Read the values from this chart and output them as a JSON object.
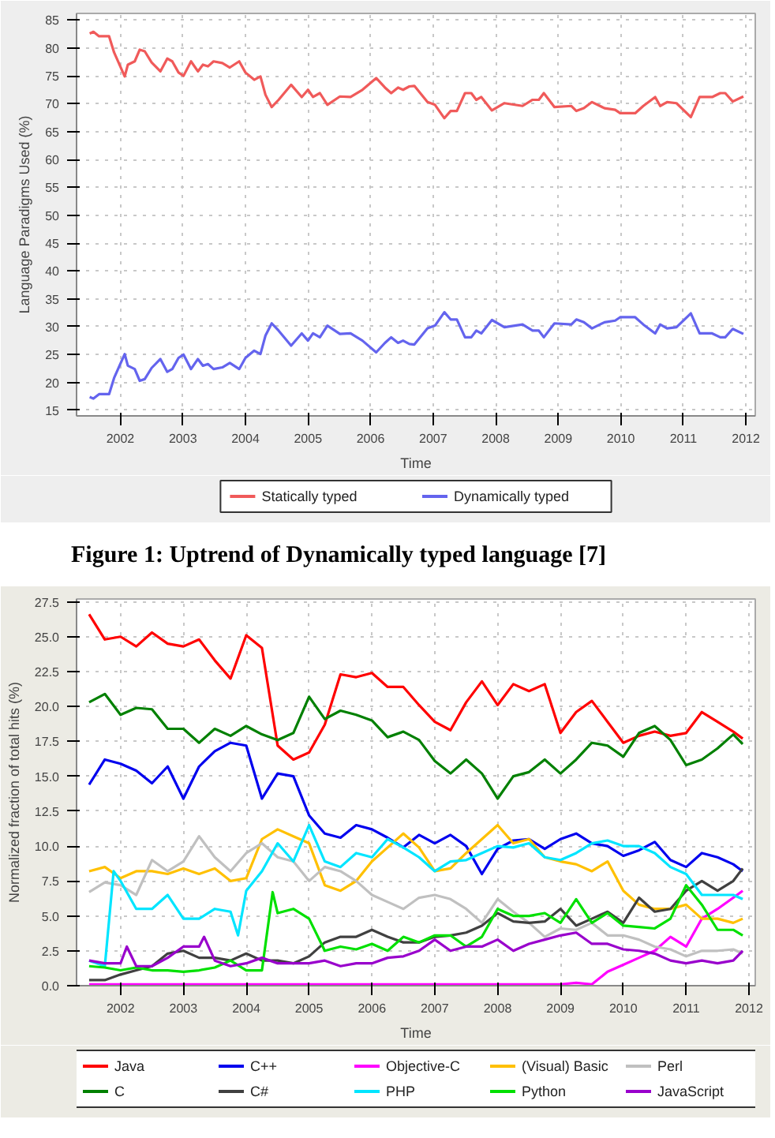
{
  "chart_data": [
    {
      "type": "line",
      "xlabel": "Time",
      "ylabel": "Language Paradigms Used (%)",
      "xlim": [
        2001.3,
        2012.15
      ],
      "ylim": [
        14,
        86.2
      ],
      "xticks": [
        2002,
        2003,
        2004,
        2005,
        2006,
        2007,
        2008,
        2009,
        2010,
        2011,
        2012
      ],
      "yticks": [
        15,
        20,
        25,
        30,
        35,
        40,
        45,
        50,
        55,
        60,
        65,
        70,
        75,
        80,
        85
      ],
      "grid": true,
      "legend": "bottom",
      "line_style": "solid",
      "annotations": [
        "Figure 1: Uptrend of Dynamically typed language [7]"
      ],
      "x": [
        2001.51,
        2001.57,
        2001.66,
        2001.82,
        2001.9,
        2002.07,
        2002.12,
        2002.23,
        2002.31,
        2002.39,
        2002.5,
        2002.64,
        2002.75,
        2002.83,
        2002.93,
        2003.01,
        2003.13,
        2003.24,
        2003.32,
        2003.4,
        2003.49,
        2003.63,
        2003.75,
        2003.9,
        2004.0,
        2004.14,
        2004.24,
        2004.32,
        2004.42,
        2004.53,
        2004.73,
        2004.9,
        2005.0,
        2005.08,
        2005.19,
        2005.31,
        2005.51,
        2005.68,
        2005.87,
        2006.09,
        2006.23,
        2006.33,
        2006.44,
        2006.52,
        2006.62,
        2006.7,
        2006.91,
        2007.03,
        2007.18,
        2007.28,
        2007.38,
        2007.51,
        2007.61,
        2007.69,
        2007.77,
        2007.94,
        2008.14,
        2008.43,
        2008.59,
        2008.69,
        2008.77,
        2008.94,
        2009.21,
        2009.29,
        2009.41,
        2009.54,
        2009.74,
        2009.91,
        2009.99,
        2010.23,
        2010.36,
        2010.55,
        2010.63,
        2010.74,
        2010.89,
        2011.12,
        2011.26,
        2011.46,
        2011.59,
        2011.67,
        2011.79,
        2011.96
      ],
      "series": [
        {
          "name": "Statically typed",
          "color": "#f05a5a",
          "values": [
            82.6,
            82.9,
            82.1,
            82.1,
            79.2,
            74.9,
            77.0,
            77.6,
            79.7,
            79.4,
            77.4,
            75.8,
            78.1,
            77.6,
            75.6,
            75.0,
            77.6,
            75.8,
            77.0,
            76.7,
            77.6,
            77.3,
            76.5,
            77.6,
            75.6,
            74.3,
            74.9,
            71.6,
            69.4,
            70.7,
            73.4,
            71.2,
            72.5,
            71.2,
            71.9,
            69.8,
            71.3,
            71.2,
            72.5,
            74.6,
            72.9,
            71.9,
            72.9,
            72.5,
            73.1,
            73.2,
            70.3,
            69.8,
            67.4,
            68.7,
            68.7,
            71.9,
            71.9,
            70.7,
            71.2,
            68.8,
            70.1,
            69.6,
            70.7,
            70.7,
            71.9,
            69.4,
            69.6,
            68.7,
            69.2,
            70.3,
            69.2,
            68.9,
            68.3,
            68.3,
            69.6,
            71.2,
            69.6,
            70.3,
            70.1,
            67.6,
            71.2,
            71.2,
            71.9,
            71.9,
            70.4,
            71.3
          ]
        },
        {
          "name": "Dynamically typed",
          "color": "#6464ee",
          "values": [
            17.4,
            17.1,
            17.9,
            17.9,
            20.8,
            25.1,
            23.0,
            22.4,
            20.3,
            20.6,
            22.6,
            24.2,
            21.9,
            22.4,
            24.4,
            25.0,
            22.4,
            24.2,
            23.0,
            23.3,
            22.4,
            22.7,
            23.5,
            22.4,
            24.4,
            25.7,
            25.1,
            28.4,
            30.6,
            29.3,
            26.6,
            28.8,
            27.5,
            28.8,
            28.1,
            30.2,
            28.7,
            28.8,
            27.5,
            25.4,
            27.1,
            28.1,
            27.1,
            27.5,
            26.9,
            26.8,
            29.7,
            30.2,
            32.6,
            31.3,
            31.3,
            28.1,
            28.1,
            29.3,
            28.8,
            31.2,
            29.9,
            30.4,
            29.3,
            29.3,
            28.1,
            30.6,
            30.4,
            31.3,
            30.8,
            29.7,
            30.8,
            31.1,
            31.7,
            31.7,
            30.4,
            28.8,
            30.4,
            29.7,
            29.9,
            32.4,
            28.8,
            28.8,
            28.1,
            28.1,
            29.6,
            28.7
          ]
        }
      ]
    },
    {
      "type": "line",
      "xlabel": "Time",
      "ylabel": "Normalized fraction of total hits (%)",
      "xlim": [
        2001.3,
        2012.1
      ],
      "ylim": [
        0,
        27.7
      ],
      "xticks": [
        2002,
        2003,
        2004,
        2005,
        2006,
        2007,
        2008,
        2009,
        2010,
        2011,
        2012
      ],
      "yticks": [
        {
          "value": 0,
          "label": "0.0"
        },
        {
          "value": 2.5,
          "label": "2.5"
        },
        {
          "value": 5,
          "label": "5.0"
        },
        {
          "value": 7.5,
          "label": "7.5"
        },
        {
          "value": 10,
          "label": "10.0"
        },
        {
          "value": 12.5,
          "label": "12.5"
        },
        {
          "value": 15,
          "label": "15.0"
        },
        {
          "value": 17.5,
          "label": "17.5"
        },
        {
          "value": 20,
          "label": "20.0"
        },
        {
          "value": 22.5,
          "label": "22.5"
        },
        {
          "value": 25,
          "label": "25.0"
        },
        {
          "value": 27.5,
          "label": "27.5"
        }
      ],
      "grid": true,
      "legend": "bottom",
      "line_style": "solid",
      "x": [
        2001.5,
        2001.75,
        2002,
        2002.25,
        2002.5,
        2002.75,
        2003,
        2003.25,
        2003.5,
        2003.75,
        2004,
        2004.25,
        2004.5,
        2004.75,
        2005,
        2005.25,
        2005.5,
        2005.75,
        2006,
        2006.25,
        2006.5,
        2006.75,
        2007,
        2007.25,
        2007.5,
        2007.75,
        2008,
        2008.25,
        2008.5,
        2008.75,
        2009,
        2009.25,
        2009.5,
        2009.75,
        2010,
        2010.25,
        2010.5,
        2010.75,
        2011,
        2011.25,
        2011.5,
        2011.75,
        2011.9
      ],
      "series": [
        {
          "name": "Java",
          "color": "#ff0000",
          "values": [
            26.6,
            24.8,
            25.0,
            24.3,
            25.3,
            24.5,
            24.3,
            24.8,
            23.3,
            22.0,
            25.1,
            24.2,
            17.2,
            16.2,
            16.7,
            18.7,
            22.3,
            22.1,
            22.4,
            21.4,
            21.4,
            20.1,
            18.9,
            18.3,
            20.3,
            21.8,
            20.1,
            21.6,
            21.1,
            21.6,
            18.1,
            19.6,
            20.4,
            18.9,
            17.4,
            17.9,
            18.2,
            17.9,
            18.1,
            19.6,
            18.9,
            18.2,
            17.7
          ]
        },
        {
          "name": "C++",
          "color": "#0000ee",
          "values": [
            14.4,
            16.2,
            15.9,
            15.4,
            14.5,
            15.7,
            13.4,
            15.7,
            16.8,
            17.4,
            17.2,
            13.4,
            15.2,
            15.0,
            12.2,
            10.9,
            10.6,
            11.5,
            11.2,
            10.6,
            9.9,
            10.8,
            10.2,
            10.8,
            10.0,
            8.0,
            9.8,
            10.4,
            10.5,
            9.8,
            10.5,
            10.9,
            10.2,
            10.0,
            9.3,
            9.7,
            10.3,
            9.0,
            8.5,
            9.5,
            9.2,
            8.7,
            8.2
          ]
        },
        {
          "name": "Objective-C",
          "color": "#ff00ff",
          "x": [
            2001.5,
            2009.0,
            2009.25,
            2009.5,
            2009.75,
            2010,
            2010.25,
            2010.5,
            2010.75,
            2011,
            2011.25,
            2011.5,
            2011.75,
            2011.9
          ],
          "values": [
            0.1,
            0.1,
            0.2,
            0.1,
            1.0,
            1.5,
            2.0,
            2.5,
            3.5,
            2.8,
            4.8,
            5.5,
            6.3,
            6.8
          ]
        },
        {
          "name": "(Visual) Basic",
          "color": "#ffc000",
          "values": [
            8.2,
            8.5,
            7.7,
            8.2,
            8.2,
            8.0,
            8.4,
            8.0,
            8.4,
            7.5,
            7.7,
            10.5,
            11.2,
            10.7,
            10.2,
            7.2,
            6.8,
            7.5,
            8.9,
            9.9,
            10.9,
            9.9,
            8.2,
            8.4,
            9.5,
            10.5,
            11.5,
            10.2,
            10.5,
            9.2,
            8.9,
            8.7,
            8.2,
            8.9,
            6.8,
            5.8,
            5.5,
            5.5,
            5.8,
            4.8,
            4.8,
            4.5,
            4.8
          ]
        },
        {
          "name": "Perl",
          "color": "#c0c0c0",
          "values": [
            6.7,
            7.4,
            7.2,
            6.5,
            9.0,
            8.2,
            8.9,
            10.7,
            9.2,
            8.2,
            9.5,
            10.2,
            9.2,
            8.9,
            7.5,
            8.5,
            8.2,
            7.5,
            6.5,
            6.0,
            5.5,
            6.3,
            6.5,
            6.2,
            5.5,
            4.5,
            6.2,
            5.3,
            4.5,
            3.5,
            4.1,
            4.0,
            4.5,
            3.6,
            3.6,
            3.3,
            2.8,
            2.6,
            2.1,
            2.5,
            2.5,
            2.6,
            2.3
          ]
        },
        {
          "name": "C",
          "color": "#008000",
          "values": [
            20.3,
            20.9,
            19.4,
            19.9,
            19.8,
            18.4,
            18.4,
            17.4,
            18.4,
            17.9,
            18.6,
            18.0,
            17.6,
            18.1,
            20.7,
            19.1,
            19.7,
            19.4,
            19.0,
            17.8,
            18.2,
            17.6,
            16.1,
            15.2,
            16.2,
            15.2,
            13.4,
            15.0,
            15.3,
            16.2,
            15.2,
            16.2,
            17.4,
            17.2,
            16.4,
            18.1,
            18.6,
            17.6,
            15.8,
            16.2,
            17.0,
            18.0,
            17.3
          ]
        },
        {
          "name": "C#",
          "color": "#404040",
          "values": [
            0.4,
            0.4,
            0.8,
            1.1,
            1.4,
            2.3,
            2.5,
            2.0,
            2.0,
            1.8,
            2.3,
            1.8,
            1.8,
            1.6,
            2.1,
            3.1,
            3.5,
            3.5,
            4.0,
            3.5,
            3.1,
            3.1,
            3.5,
            3.6,
            3.8,
            4.3,
            5.2,
            4.6,
            4.5,
            4.6,
            5.5,
            4.3,
            4.8,
            5.3,
            4.5,
            6.3,
            5.3,
            5.5,
            6.8,
            7.5,
            6.8,
            7.5,
            8.4
          ]
        },
        {
          "name": "PHP",
          "color": "#00e5ff",
          "x": [
            2001.5,
            2001.75,
            2001.89,
            2002,
            2002.25,
            2002.5,
            2002.75,
            2003,
            2003.25,
            2003.5,
            2003.75,
            2003.87,
            2004,
            2004.25,
            2004.5,
            2004.75,
            2005,
            2005.25,
            2005.5,
            2005.75,
            2006,
            2006.25,
            2006.5,
            2006.75,
            2007,
            2007.25,
            2007.5,
            2007.75,
            2008,
            2008.25,
            2008.5,
            2008.75,
            2009,
            2009.25,
            2009.5,
            2009.75,
            2010,
            2010.25,
            2010.5,
            2010.75,
            2011,
            2011.25,
            2011.5,
            2011.75,
            2011.9
          ],
          "values": [
            1.8,
            1.4,
            8.2,
            7.5,
            5.5,
            5.5,
            6.5,
            4.8,
            4.8,
            5.5,
            5.3,
            3.6,
            6.8,
            8.2,
            10.2,
            8.9,
            11.5,
            8.9,
            8.5,
            9.5,
            9.2,
            10.5,
            9.9,
            9.2,
            8.2,
            8.9,
            9.0,
            9.5,
            10.0,
            9.9,
            10.2,
            9.2,
            9.0,
            9.5,
            10.2,
            10.4,
            10.0,
            10.0,
            9.5,
            8.5,
            8.0,
            6.5,
            6.5,
            6.5,
            6.2
          ]
        },
        {
          "name": "Python",
          "color": "#00e000",
          "x": [
            2001.5,
            2001.75,
            2002,
            2002.25,
            2002.5,
            2002.75,
            2003,
            2003.25,
            2003.5,
            2003.75,
            2004,
            2004.25,
            2004.42,
            2004.5,
            2004.75,
            2005,
            2005.25,
            2005.5,
            2005.75,
            2006,
            2006.25,
            2006.5,
            2006.75,
            2007,
            2007.25,
            2007.5,
            2007.75,
            2008,
            2008.25,
            2008.5,
            2008.75,
            2009,
            2009.25,
            2009.5,
            2009.75,
            2010,
            2010.25,
            2010.5,
            2010.75,
            2011,
            2011.25,
            2011.5,
            2011.75,
            2011.9
          ],
          "values": [
            1.4,
            1.3,
            1.1,
            1.3,
            1.1,
            1.1,
            1.0,
            1.1,
            1.3,
            1.8,
            1.1,
            1.1,
            6.7,
            5.2,
            5.5,
            4.8,
            2.5,
            2.8,
            2.6,
            3.0,
            2.5,
            3.5,
            3.1,
            3.6,
            3.6,
            2.8,
            3.5,
            5.5,
            5.0,
            5.0,
            5.2,
            4.5,
            6.2,
            4.5,
            5.2,
            4.3,
            4.2,
            4.1,
            4.8,
            7.2,
            5.8,
            4.0,
            4.0,
            3.6
          ]
        },
        {
          "name": "JavaScript",
          "color": "#9900cc",
          "x": [
            2001.5,
            2001.75,
            2002,
            2002.1,
            2002.25,
            2002.5,
            2002.75,
            2003,
            2003.25,
            2003.33,
            2003.5,
            2003.75,
            2004,
            2004.25,
            2004.5,
            2004.75,
            2005,
            2005.25,
            2005.5,
            2005.75,
            2006,
            2006.25,
            2006.5,
            2006.75,
            2007,
            2007.25,
            2007.5,
            2007.75,
            2008,
            2008.25,
            2008.5,
            2008.75,
            2009,
            2009.25,
            2009.5,
            2009.75,
            2010,
            2010.25,
            2010.5,
            2010.75,
            2011,
            2011.25,
            2011.5,
            2011.75,
            2011.9
          ],
          "values": [
            1.8,
            1.6,
            1.6,
            2.8,
            1.4,
            1.4,
            2.0,
            2.8,
            2.8,
            3.5,
            1.8,
            1.4,
            1.6,
            2.0,
            1.6,
            1.6,
            1.6,
            1.8,
            1.4,
            1.6,
            1.6,
            2.0,
            2.1,
            2.5,
            3.3,
            2.5,
            2.8,
            2.8,
            3.3,
            2.5,
            3.0,
            3.3,
            3.6,
            3.8,
            3.0,
            3.0,
            2.6,
            2.5,
            2.3,
            1.8,
            1.6,
            1.8,
            1.6,
            1.8,
            2.5
          ]
        }
      ]
    }
  ]
}
